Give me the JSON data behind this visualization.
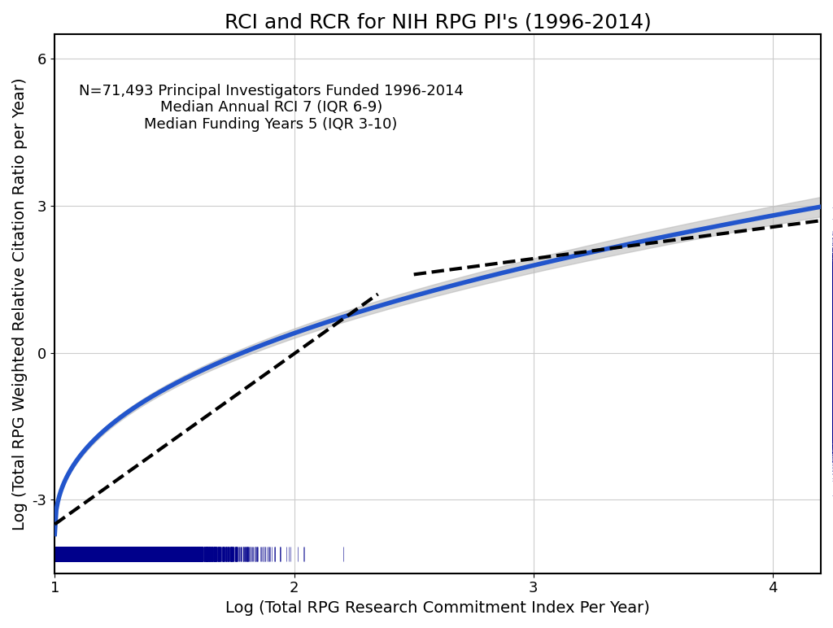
{
  "title": "RCI and RCR for NIH RPG PI's (1996-2014)",
  "xlabel": "Log (Total RPG Research Commitment Index Per Year)",
  "ylabel": "Log (Total RPG Weighted Relative Citation Ratio per Year)",
  "annotation_lines": [
    "N=71,493 Principal Investigators Funded 1996-2014",
    "Median Annual RCI 7 (IQR 6-9)",
    "Median Funding Years 5 (IQR 3-10)"
  ],
  "xlim": [
    1.0,
    4.2
  ],
  "ylim": [
    -4.5,
    6.5
  ],
  "xticks": [
    1,
    2,
    3,
    4
  ],
  "yticks": [
    -3,
    0,
    3,
    6
  ],
  "curve_color": "#2255CC",
  "curve_linewidth": 4.0,
  "ci_color": "#BBBBBB",
  "ci_alpha": 0.6,
  "dashed_color": "black",
  "dashed_linewidth": 3.0,
  "rug_color_dark": "#00008B",
  "rug_color_mid": "#4444CC",
  "rug_color_light": "#9999DD",
  "background_color": "white",
  "grid_color": "#CCCCCC",
  "title_fontsize": 18,
  "label_fontsize": 14,
  "tick_fontsize": 13,
  "annotation_fontsize": 13
}
